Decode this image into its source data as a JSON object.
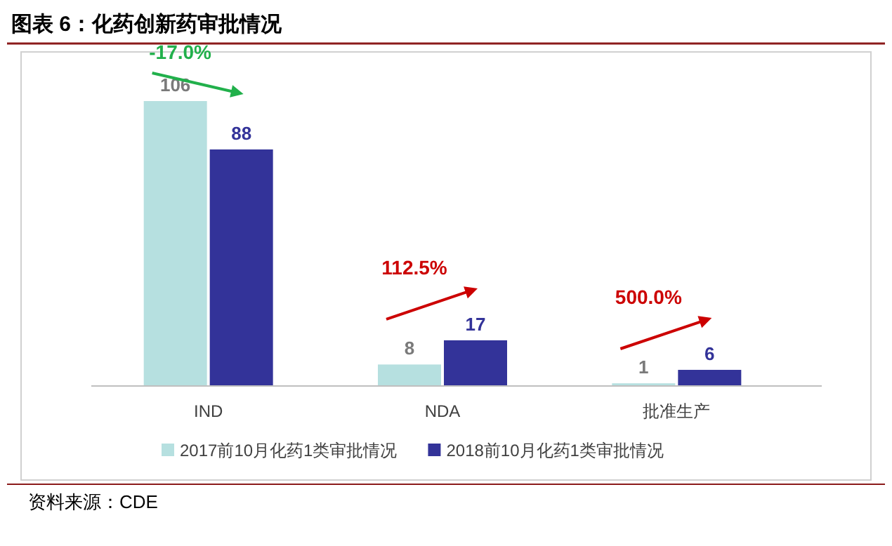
{
  "chart_data": {
    "type": "bar",
    "title": "图表 6：化药创新药审批情况",
    "categories": [
      "IND",
      "NDA",
      "批准生产"
    ],
    "series": [
      {
        "name": "2017前10月化药1类审批情况",
        "color": "#b6e0e0",
        "values": [
          106,
          8,
          1
        ]
      },
      {
        "name": "2018前10月化药1类审批情况",
        "color": "#333399",
        "values": [
          88,
          17,
          6
        ]
      }
    ],
    "data_labels": true,
    "legend": "bottom",
    "annotations": [
      "-17.0%",
      "112.5%",
      "500.0%",
      "资料来源：CDE"
    ]
  }
}
